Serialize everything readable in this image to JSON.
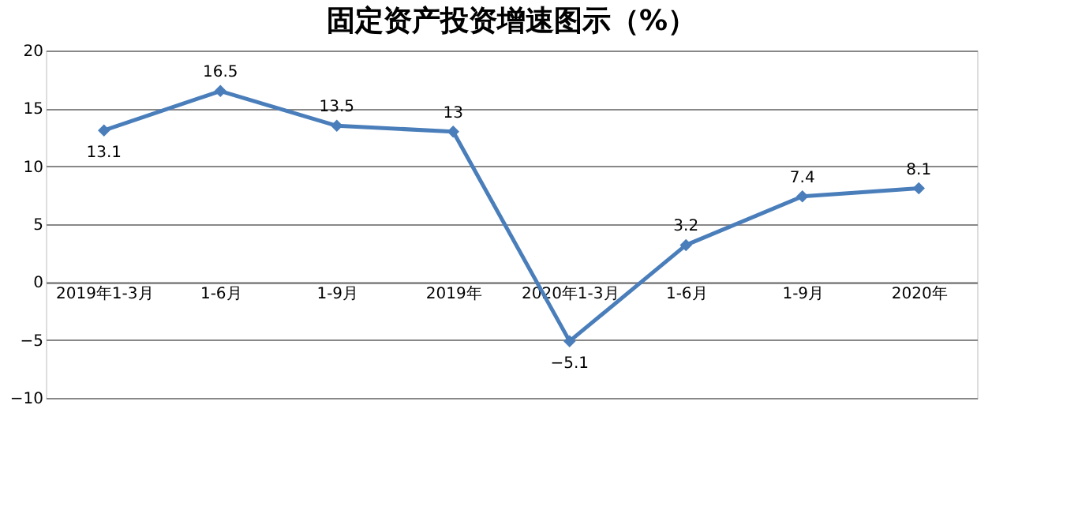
{
  "chart_data": {
    "type": "line",
    "title": "固定资产投资增速图示（%）",
    "categories": [
      "2019年1-3月",
      "1-6月",
      "1-9月",
      "2019年",
      "2020年1-3月",
      "1-6月",
      "1-9月",
      "2020年"
    ],
    "series": [
      {
        "color": "#4a7ebb",
        "values": [
          13.1,
          16.5,
          13.5,
          13,
          -5.1,
          3.2,
          7.4,
          8.1
        ]
      }
    ],
    "ylim": [
      -10,
      20
    ],
    "yticks": [
      -10,
      -5,
      0,
      5,
      10,
      15,
      20
    ],
    "grid": "y",
    "marker": "diamond",
    "line_style": "solid",
    "data_labels": true
  }
}
